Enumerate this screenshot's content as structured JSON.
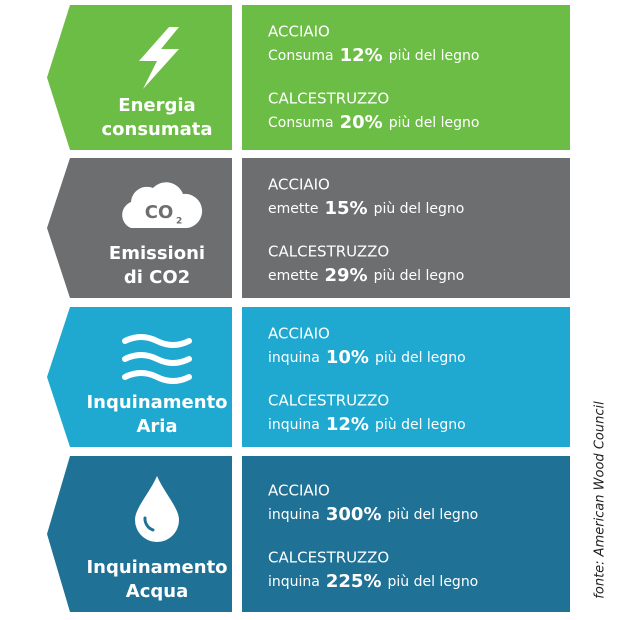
{
  "rows": [
    {
      "label_lines": [
        "Energia",
        "consumata"
      ],
      "color": "#6cbd45",
      "icon": "bolt",
      "items": [
        {
          "material": "ACCIAIO",
          "verb": "Consuma",
          "percent": "12%",
          "suffix": "più del legno"
        },
        {
          "material": "CALCESTRUZZO",
          "verb": "Consuma",
          "percent": "20%",
          "suffix": "più del legno"
        }
      ]
    },
    {
      "label_lines": [
        "Emissioni",
        "di CO2"
      ],
      "color": "#6d6e70",
      "icon": "cloud",
      "icon_text": "CO",
      "icon_sub": "2",
      "items": [
        {
          "material": "ACCIAIO",
          "verb": "emette",
          "percent": "15%",
          "suffix": "più del legno"
        },
        {
          "material": "CALCESTRUZZO",
          "verb": "emette",
          "percent": "29%",
          "suffix": "più del legno"
        }
      ]
    },
    {
      "label_lines": [
        "Inquinamento",
        "Aria"
      ],
      "color": "#1fa9d1",
      "icon": "wind",
      "items": [
        {
          "material": "ACCIAIO",
          "verb": "inquina",
          "percent": "10%",
          "suffix": "più del legno"
        },
        {
          "material": "CALCESTRUZZO",
          "verb": "inquina",
          "percent": "12%",
          "suffix": "più del legno"
        }
      ]
    },
    {
      "label_lines": [
        "Inquinamento",
        "Acqua"
      ],
      "color": "#1f7196",
      "icon": "drop",
      "items": [
        {
          "material": "ACCIAIO",
          "verb": "inquina",
          "percent": "300%",
          "suffix": "più del legno"
        },
        {
          "material": "CALCESTRUZZO",
          "verb": "inquina",
          "percent": "225%",
          "suffix": "più del legno"
        }
      ]
    }
  ],
  "source": "fonte: American Wood Council"
}
